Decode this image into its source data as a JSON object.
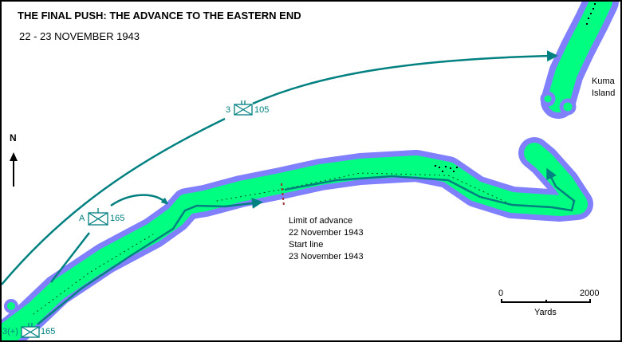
{
  "title": "THE FINAL PUSH: THE ADVANCE TO THE EASTERN END",
  "subtitle": "22 - 23 NOVEMBER 1943",
  "north_label": "N",
  "island_label": [
    "Kuma",
    "Island"
  ],
  "phase_line_label": [
    "Limit of advance",
    "22 November 1943",
    "Start line",
    "23 November 1943"
  ],
  "units": [
    {
      "left": "3",
      "right": "105"
    },
    {
      "left": "A",
      "right": "165"
    },
    {
      "left": "3(+)",
      "right": "165"
    }
  ],
  "scale": {
    "start": "0",
    "end": "2000",
    "unit": "Yards"
  },
  "colors": {
    "land": "#00ff80",
    "reef": "#8080ff",
    "route": "#008080",
    "text": "#000000"
  }
}
